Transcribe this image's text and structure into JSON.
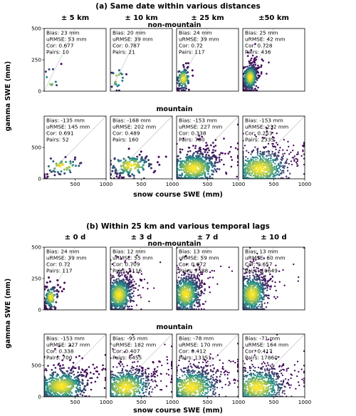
{
  "sections": [
    {
      "title": "(a) Same date within various distances",
      "columns": [
        "± 5 km",
        "± 10 km",
        "± 25 km",
        "±50 km"
      ],
      "ylabel": "gamma SWE (mm)",
      "xlabel": "snow course SWE (mm)"
    },
    {
      "title": "(b) Within 25 km and various temporal lags",
      "columns": [
        "± 0 d",
        "± 3 d",
        "± 7 d",
        "± 10 d"
      ],
      "ylabel": "gamma SWE (mm)",
      "xlabel": "snow course SWE (mm)"
    }
  ],
  "row_labels": {
    "nonmountain": "non-mountain",
    "mountain": "mountain"
  },
  "colors": {
    "low_density": "#440154",
    "mid_density": "#21918c",
    "high_density": "#fde725",
    "one_to_one": "#bbbbbb"
  },
  "chart_data": [
    {
      "type": "scatter",
      "section": "a",
      "column": "± 5 km",
      "row": "non-mountain",
      "xlim": [
        0,
        1000
      ],
      "ylim": [
        0,
        500
      ],
      "xticks": [
        500,
        1000
      ],
      "yticks": [
        0,
        250,
        500
      ],
      "stats": [
        "Bias: 23 mm",
        "uRMSE: 53 mm",
        "Cor: 0.677",
        "Pairs: 10"
      ],
      "pairs": 10,
      "center": [
        110,
        95
      ],
      "spread": [
        60,
        50
      ]
    },
    {
      "type": "scatter",
      "section": "a",
      "column": "± 10 km",
      "row": "non-mountain",
      "xlim": [
        0,
        1000
      ],
      "ylim": [
        0,
        500
      ],
      "xticks": [
        500,
        1000
      ],
      "yticks": [
        0,
        250,
        500
      ],
      "stats": [
        "Bias: 20 mm",
        "uRMSE: 39 mm",
        "Cor: 0.787",
        "Pairs: 21"
      ],
      "pairs": 21,
      "center": [
        120,
        100
      ],
      "spread": [
        60,
        45
      ]
    },
    {
      "type": "scatter",
      "section": "a",
      "column": "± 25 km",
      "row": "non-mountain",
      "xlim": [
        0,
        1000
      ],
      "ylim": [
        0,
        500
      ],
      "xticks": [
        500,
        1000
      ],
      "yticks": [
        0,
        250,
        500
      ],
      "stats": [
        "Bias: 24 mm",
        "uRMSE: 39 mm",
        "Cor: 0.72",
        "Pairs: 117"
      ],
      "pairs": 117,
      "center": [
        110,
        100
      ],
      "spread": [
        55,
        45
      ]
    },
    {
      "type": "scatter",
      "section": "a",
      "column": "±50 km",
      "row": "non-mountain",
      "xlim": [
        0,
        1000
      ],
      "ylim": [
        0,
        500
      ],
      "xticks": [
        500,
        1000
      ],
      "yticks": [
        0,
        250,
        500
      ],
      "stats": [
        "Bias: 25 mm",
        "uRMSE: 42 mm",
        "Cor: 0.728",
        "Pairs: 436"
      ],
      "pairs": 436,
      "center": [
        120,
        110
      ],
      "spread": [
        60,
        50
      ]
    },
    {
      "type": "scatter",
      "section": "a",
      "column": "± 5 km",
      "row": "mountain",
      "xlim": [
        0,
        1000
      ],
      "ylim": [
        0,
        1000
      ],
      "xticks": [
        500,
        1000
      ],
      "yticks": [
        0,
        500
      ],
      "stats": [
        "Bias: -135 mm",
        "uRMSE: 145 mm",
        "Cor: 0.691",
        "Pairs: 52"
      ],
      "pairs": 52,
      "center": [
        300,
        200
      ],
      "spread": [
        160,
        70
      ]
    },
    {
      "type": "scatter",
      "section": "a",
      "column": "± 10 km",
      "row": "mountain",
      "xlim": [
        0,
        1000
      ],
      "ylim": [
        0,
        1000
      ],
      "xticks": [
        500,
        1000
      ],
      "yticks": [
        0,
        500
      ],
      "stats": [
        "Bias: -168 mm",
        "uRMSE: 202 mm",
        "Cor: 0.489",
        "Pairs: 160"
      ],
      "pairs": 160,
      "center": [
        330,
        210
      ],
      "spread": [
        180,
        90
      ]
    },
    {
      "type": "scatter",
      "section": "a",
      "column": "± 25 km",
      "row": "mountain",
      "xlim": [
        0,
        1000
      ],
      "ylim": [
        0,
        1000
      ],
      "xticks": [
        500,
        1000
      ],
      "yticks": [
        0,
        500
      ],
      "stats": [
        "Bias: -153 mm",
        "uRMSE: 227 mm",
        "Cor: 0.338",
        "Pairs: 700"
      ],
      "pairs": 700,
      "center": [
        280,
        170
      ],
      "spread": [
        210,
        130
      ]
    },
    {
      "type": "scatter",
      "section": "a",
      "column": "±50 km",
      "row": "mountain",
      "xlim": [
        0,
        1000
      ],
      "ylim": [
        0,
        1000
      ],
      "xticks": [
        500,
        1000
      ],
      "yticks": [
        0,
        500
      ],
      "stats": [
        "Bias: -153 mm",
        "uRMSE: 232 mm",
        "Cor: 0.253",
        "Pairs: 2335"
      ],
      "pairs": 2335,
      "center": [
        280,
        160
      ],
      "spread": [
        230,
        150
      ]
    },
    {
      "type": "scatter",
      "section": "b",
      "column": "± 0 d",
      "row": "non-mountain",
      "xlim": [
        0,
        1000
      ],
      "ylim": [
        0,
        500
      ],
      "xticks": [
        500,
        1000
      ],
      "yticks": [
        0,
        250,
        500
      ],
      "stats": [
        "Bias: 24 mm",
        "uRMSE: 39 mm",
        "Cor: 0.72",
        "Pairs: 117"
      ],
      "pairs": 117,
      "center": [
        110,
        100
      ],
      "spread": [
        55,
        45
      ]
    },
    {
      "type": "scatter",
      "section": "b",
      "column": "± 3 d",
      "row": "non-mountain",
      "xlim": [
        0,
        1000
      ],
      "ylim": [
        0,
        500
      ],
      "xticks": [
        500,
        1000
      ],
      "yticks": [
        0,
        250,
        500
      ],
      "stats": [
        "Bias: 12 mm",
        "uRMSE: 55 mm",
        "Cor: 0.709",
        "Pairs: 3116"
      ],
      "pairs": 3116,
      "center": [
        140,
        120
      ],
      "spread": [
        110,
        70
      ]
    },
    {
      "type": "scatter",
      "section": "b",
      "column": "± 7 d",
      "row": "non-mountain",
      "xlim": [
        0,
        1000
      ],
      "ylim": [
        0,
        500
      ],
      "xticks": [
        500,
        1000
      ],
      "yticks": [
        0,
        250,
        500
      ],
      "stats": [
        "Bias: 13 mm",
        "uRMSE: 59 mm",
        "Cor: 0.672",
        "Pairs: 7588"
      ],
      "pairs": 7588,
      "center": [
        150,
        125
      ],
      "spread": [
        120,
        75
      ]
    },
    {
      "type": "scatter",
      "section": "b",
      "column": "± 10 d",
      "row": "non-mountain",
      "xlim": [
        0,
        1000
      ],
      "ylim": [
        0,
        500
      ],
      "xticks": [
        500,
        1000
      ],
      "yticks": [
        0,
        250,
        500
      ],
      "stats": [
        "Bias: 13 mm",
        "uRMSE: 60 mm",
        "Cor: 0.657",
        "Pairs: 10649"
      ],
      "pairs": 10649,
      "center": [
        150,
        125
      ],
      "spread": [
        125,
        78
      ]
    },
    {
      "type": "scatter",
      "section": "b",
      "column": "± 0 d",
      "row": "mountain",
      "xlim": [
        0,
        1000
      ],
      "ylim": [
        0,
        1000
      ],
      "xticks": [
        500,
        1000
      ],
      "yticks": [
        0,
        500
      ],
      "stats": [
        "Bias: -153 mm",
        "uRMSE: 227 mm",
        "Cor: 0.338",
        "Pairs: 700"
      ],
      "pairs": 700,
      "center": [
        280,
        170
      ],
      "spread": [
        210,
        130
      ]
    },
    {
      "type": "scatter",
      "section": "b",
      "column": "± 3 d",
      "row": "mountain",
      "xlim": [
        0,
        1000
      ],
      "ylim": [
        0,
        1000
      ],
      "xticks": [
        500,
        1000
      ],
      "yticks": [
        0,
        500
      ],
      "stats": [
        "Bias: -95 mm",
        "uRMSE: 182 mm",
        "Cor: 0.407",
        "Pairs: 6455"
      ],
      "pairs": 6455,
      "center": [
        250,
        150
      ],
      "spread": [
        220,
        150
      ]
    },
    {
      "type": "scatter",
      "section": "b",
      "column": "± 7 d",
      "row": "mountain",
      "xlim": [
        0,
        1000
      ],
      "ylim": [
        0,
        1000
      ],
      "xticks": [
        500,
        1000
      ],
      "yticks": [
        0,
        500
      ],
      "stats": [
        "Bias: -78 mm",
        "uRMSE: 170 mm",
        "Cor: 0.412",
        "Pairs: 13351"
      ],
      "pairs": 13351,
      "center": [
        240,
        150
      ],
      "spread": [
        225,
        155
      ]
    },
    {
      "type": "scatter",
      "section": "b",
      "column": "± 10 d",
      "row": "mountain",
      "xlim": [
        0,
        1000
      ],
      "ylim": [
        0,
        1000
      ],
      "xticks": [
        500,
        1000
      ],
      "yticks": [
        0,
        500
      ],
      "stats": [
        "Bias: -71 mm",
        "uRMSE: 164 mm",
        "Cor: 0.417",
        "Pairs: 17860"
      ],
      "pairs": 17860,
      "center": [
        235,
        150
      ],
      "spread": [
        225,
        155
      ]
    }
  ]
}
